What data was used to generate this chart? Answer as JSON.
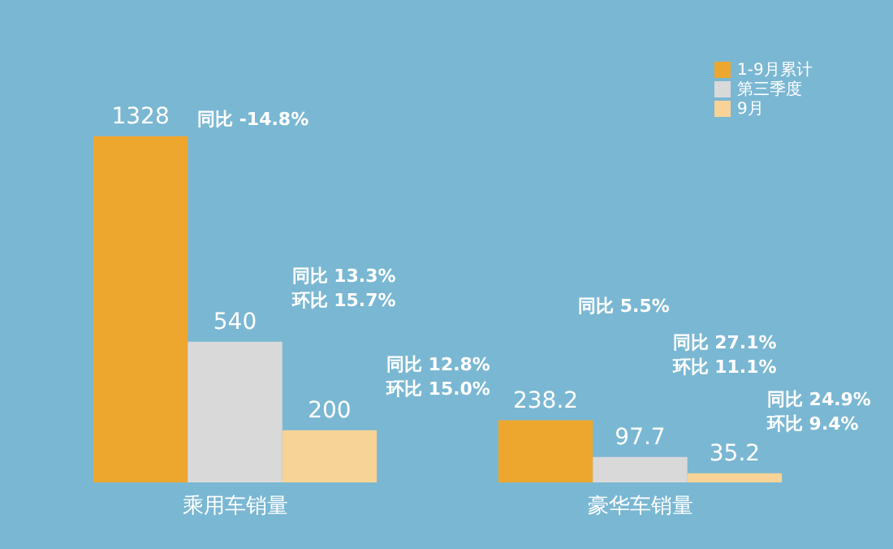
{
  "chart_data": {
    "type": "bar",
    "categories": [
      "乘用车销量",
      "豪华车销量"
    ],
    "series": [
      {
        "name": "1-9月累计",
        "color": "#eea72e",
        "values": [
          1328,
          238.2
        ]
      },
      {
        "name": "第三季度",
        "color": "#d9d9d9",
        "values": [
          540,
          97.7
        ]
      },
      {
        "name": "9月",
        "color": "#f7d397",
        "values": [
          200,
          35.2
        ]
      }
    ],
    "data_labels": true,
    "legend": "top right",
    "annotations": [
      "同比 -14.8%",
      "同比 13.3%",
      "环比 15.7%",
      "同比 12.8%",
      "环比 15.0%",
      "同比 5.5%",
      "同比 27.1%",
      "环比 11.1%",
      "同比 24.9%",
      "环比 9.4%"
    ]
  }
}
